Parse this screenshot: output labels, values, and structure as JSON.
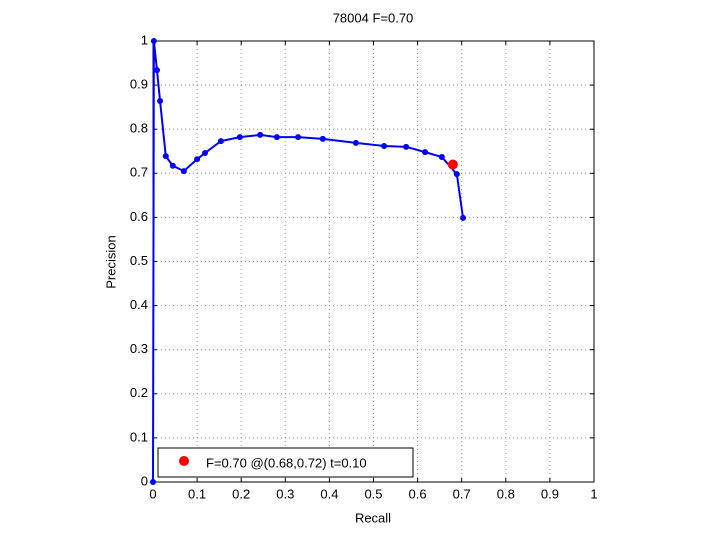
{
  "chart_data": {
    "type": "line",
    "title": "78004 F=0.70",
    "x_label": "Recall",
    "y_label": "Precision",
    "series": [
      {
        "color": "#0000ff",
        "x": [
          0,
          0.002,
          0.009,
          0.016,
          0.029,
          0.045,
          0.07,
          0.1,
          0.118,
          0.154,
          0.197,
          0.243,
          0.281,
          0.329,
          0.385,
          0.46,
          0.524,
          0.574,
          0.617,
          0.655,
          0.689,
          0.703
        ],
        "values": [
          0,
          1.0,
          0.934,
          0.864,
          0.739,
          0.717,
          0.705,
          0.732,
          0.746,
          0.773,
          0.782,
          0.787,
          0.782,
          0.782,
          0.778,
          0.769,
          0.762,
          0.76,
          0.748,
          0.737,
          0.698,
          0.599
        ]
      }
    ],
    "best_point": {
      "x": 0.68,
      "y": 0.72,
      "color": "#ff0000",
      "label": "F=0.70 @(0.68,0.72) t=0.10"
    },
    "xlim": [
      0,
      1
    ],
    "ylim": [
      0,
      1
    ],
    "xticks": [
      0,
      0.1,
      0.2,
      0.3,
      0.4,
      0.5,
      0.6,
      0.7,
      0.8,
      0.9,
      1
    ],
    "yticks": [
      0,
      0.1,
      0.2,
      0.3,
      0.4,
      0.5,
      0.6,
      0.7,
      0.8,
      0.9,
      1
    ],
    "grid": true,
    "legend": "lower left"
  }
}
